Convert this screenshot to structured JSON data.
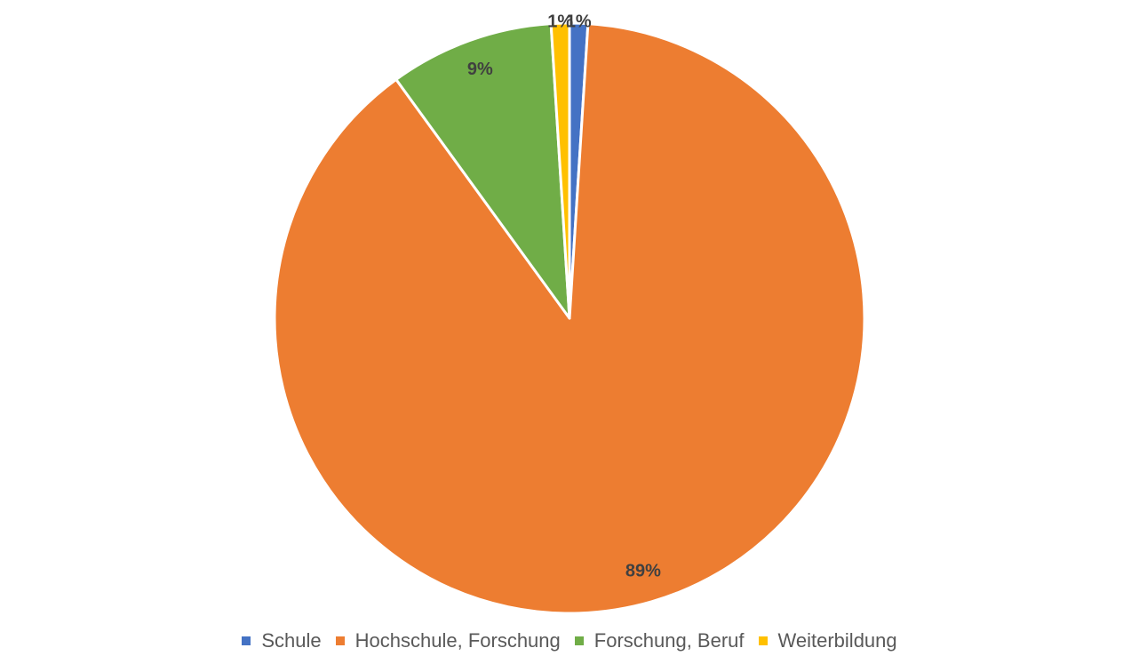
{
  "chart_data": {
    "type": "pie",
    "title": "",
    "categories": [
      "Schule",
      "Hochschule, Forschung",
      "Forschung, Beruf",
      "Weiterbildung"
    ],
    "values": [
      1,
      89,
      9,
      1
    ],
    "data_labels": [
      "1%",
      "89%",
      "9%",
      "1%"
    ],
    "colors": [
      "#4472C4",
      "#ED7D31",
      "#70AD47",
      "#FFC000"
    ],
    "legend_position": "bottom",
    "start_angle_deg": 0,
    "direction": "clockwise"
  },
  "legend": {
    "items": [
      {
        "label": "Schule",
        "color": "#4472C4"
      },
      {
        "label": "Hochschule, Forschung",
        "color": "#ED7D31"
      },
      {
        "label": "Forschung, Beruf",
        "color": "#70AD47"
      },
      {
        "label": "Weiterbildung",
        "color": "#FFC000"
      }
    ]
  }
}
